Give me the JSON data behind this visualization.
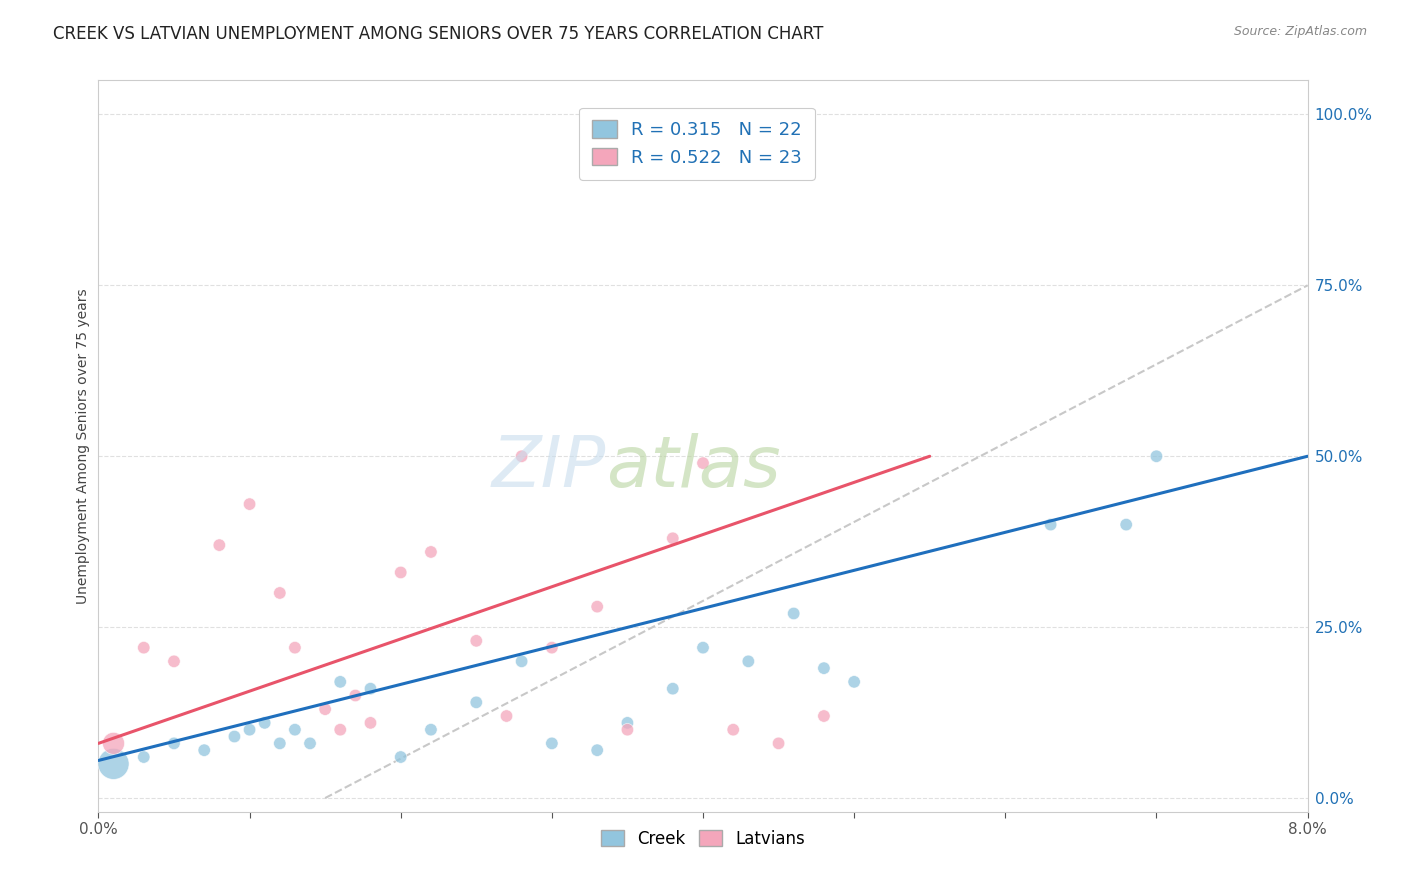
{
  "title": "CREEK VS LATVIAN UNEMPLOYMENT AMONG SENIORS OVER 75 YEARS CORRELATION CHART",
  "source": "Source: ZipAtlas.com",
  "ylabel": "Unemployment Among Seniors over 75 years",
  "ytick_labels": [
    "0.0%",
    "25.0%",
    "50.0%",
    "75.0%",
    "100.0%"
  ],
  "ytick_values": [
    0.0,
    0.25,
    0.5,
    0.75,
    1.0
  ],
  "xlim": [
    0.0,
    0.08
  ],
  "ylim": [
    -0.02,
    1.05
  ],
  "creek_color": "#92c5de",
  "latvian_color": "#f4a6bb",
  "creek_line_color": "#1f6fbd",
  "latvian_line_color": "#e8546a",
  "diagonal_color": "#c8c8c8",
  "watermark_text": "ZIP",
  "watermark_text2": "atlas",
  "watermark_color1": "#c5d8ea",
  "watermark_color2": "#b8cfa0",
  "background_color": "#ffffff",
  "grid_color": "#e0e0e0",
  "creek_points_x": [
    0.001,
    0.003,
    0.005,
    0.007,
    0.009,
    0.01,
    0.011,
    0.012,
    0.013,
    0.014,
    0.016,
    0.018,
    0.02,
    0.022,
    0.025,
    0.028,
    0.03,
    0.033,
    0.035,
    0.038,
    0.04,
    0.043,
    0.046,
    0.048,
    0.05,
    0.063,
    0.068,
    0.07
  ],
  "creek_points_y": [
    0.05,
    0.06,
    0.08,
    0.07,
    0.09,
    0.1,
    0.11,
    0.08,
    0.1,
    0.08,
    0.17,
    0.16,
    0.06,
    0.1,
    0.14,
    0.2,
    0.08,
    0.07,
    0.11,
    0.16,
    0.22,
    0.2,
    0.27,
    0.19,
    0.17,
    0.4,
    0.4,
    0.5
  ],
  "creek_sizes": [
    500,
    80,
    80,
    80,
    80,
    80,
    80,
    80,
    80,
    80,
    80,
    80,
    80,
    80,
    80,
    80,
    80,
    80,
    80,
    80,
    80,
    80,
    80,
    80,
    80,
    80,
    80,
    80
  ],
  "latvian_points_x": [
    0.001,
    0.003,
    0.005,
    0.008,
    0.01,
    0.012,
    0.013,
    0.015,
    0.016,
    0.017,
    0.018,
    0.02,
    0.022,
    0.025,
    0.027,
    0.028,
    0.03,
    0.033,
    0.035,
    0.038,
    0.04,
    0.042,
    0.045,
    0.048
  ],
  "latvian_points_y": [
    0.08,
    0.22,
    0.2,
    0.37,
    0.43,
    0.3,
    0.22,
    0.13,
    0.1,
    0.15,
    0.11,
    0.33,
    0.36,
    0.23,
    0.12,
    0.5,
    0.22,
    0.28,
    0.1,
    0.38,
    0.49,
    0.1,
    0.08,
    0.12
  ],
  "latvian_sizes": [
    250,
    80,
    80,
    80,
    80,
    80,
    80,
    80,
    80,
    80,
    80,
    80,
    80,
    80,
    80,
    80,
    80,
    80,
    80,
    80,
    80,
    80,
    80,
    80
  ],
  "creek_line_x": [
    0.0,
    0.08
  ],
  "creek_line_y": [
    0.055,
    0.5
  ],
  "latvian_line_x": [
    0.0,
    0.055
  ],
  "latvian_line_y": [
    0.08,
    0.5
  ],
  "diag_line_x": [
    0.015,
    0.08
  ],
  "diag_line_y": [
    0.0,
    0.75
  ]
}
